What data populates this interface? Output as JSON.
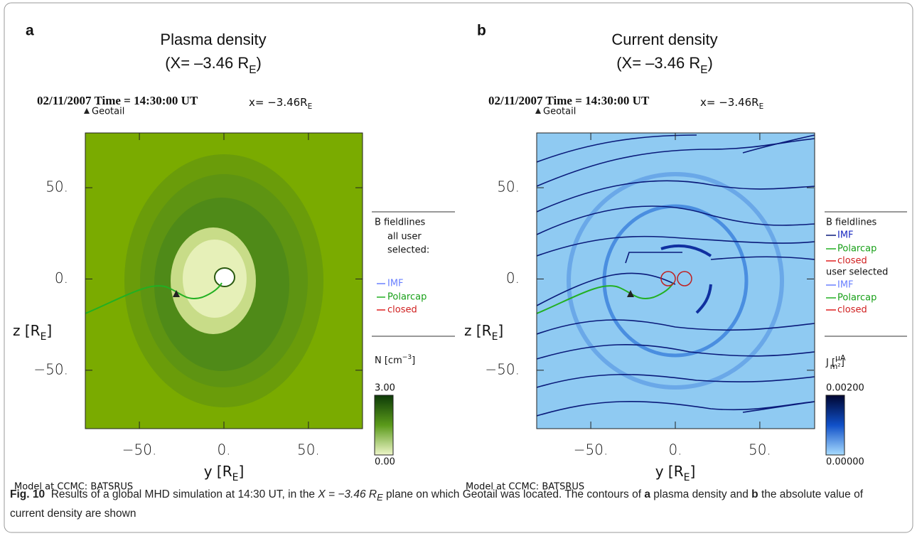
{
  "panels": [
    {
      "letter": "a",
      "title": "Plasma density",
      "subtitle": [
        "(X= –3.46 R",
        "E",
        ")"
      ],
      "header": "02/11/2007 Time = 14:30:00 UT",
      "header_x": [
        "x= −3.46R",
        "E"
      ],
      "marker": "Geotail",
      "xlabel": [
        "y [R",
        "E",
        "]"
      ],
      "ylabel": [
        "z [R",
        "E",
        "]"
      ],
      "xlim": [
        -82,
        82
      ],
      "ylim": [
        -82,
        80
      ],
      "xticks": [
        {
          "value": -50,
          "label": "−50."
        },
        {
          "value": 0,
          "label": "0."
        },
        {
          "value": 50,
          "label": "50."
        }
      ],
      "yticks": [
        {
          "value": -50,
          "label": "−50."
        },
        {
          "value": 0,
          "label": "0."
        },
        {
          "value": 50,
          "label": "50."
        }
      ],
      "legend": [
        "B fieldlines",
        "all user",
        "selected:",
        "IMF",
        "Polarcap",
        "closed"
      ],
      "colorbar_label": [
        "N [cm",
        "−3",
        "]"
      ],
      "colorbar_ticks": [
        {
          "value": 3,
          "label": "3.00"
        },
        {
          "value": 0,
          "label": "0.00"
        }
      ],
      "footer": "Model at CCMC: BATSRUS"
    },
    {
      "letter": "b",
      "title": "Current density",
      "subtitle": [
        "(X= –3.46 R",
        "E",
        ")"
      ],
      "header": "02/11/2007 Time = 14:30:00 UT",
      "header_x": [
        "x= −3.46R",
        "E"
      ],
      "marker": "Geotail",
      "xlabel": [
        "y [R",
        "E",
        "]"
      ],
      "ylabel": [
        "z [R",
        "E",
        "]"
      ],
      "xlim": [
        -82,
        82
      ],
      "ylim": [
        -82,
        80
      ],
      "xticks": [
        {
          "value": -50,
          "label": "−50."
        },
        {
          "value": 0,
          "label": "0."
        },
        {
          "value": 50,
          "label": "50."
        }
      ],
      "yticks": [
        {
          "value": -50,
          "label": "−50."
        },
        {
          "value": 0,
          "label": "0."
        },
        {
          "value": 50,
          "label": "50."
        }
      ],
      "legend": [
        "B fieldlines",
        "IMF",
        "Polarcap",
        "closed",
        "user selected",
        "IMF",
        "Polarcap",
        "closed"
      ],
      "colorbar_label": [
        "J [",
        "μA",
        "m²",
        "]"
      ],
      "colorbar_ticks": [
        {
          "value": 0.002,
          "label": "0.00200"
        },
        {
          "value": 0,
          "label": "0.00000"
        }
      ],
      "footer": "Model at CCMC: BATSRUS"
    }
  ],
  "caption": {
    "label": "Fig. 10",
    "parts": [
      "Results of a global MHD simulation at 14:30 UT, in the ",
      "X = −3.46 R",
      "E",
      " plane on which Geotail was located. The contours of ",
      "a",
      " plasma density",
      " and ",
      "b",
      " the absolute value of current density are shown"
    ]
  }
}
